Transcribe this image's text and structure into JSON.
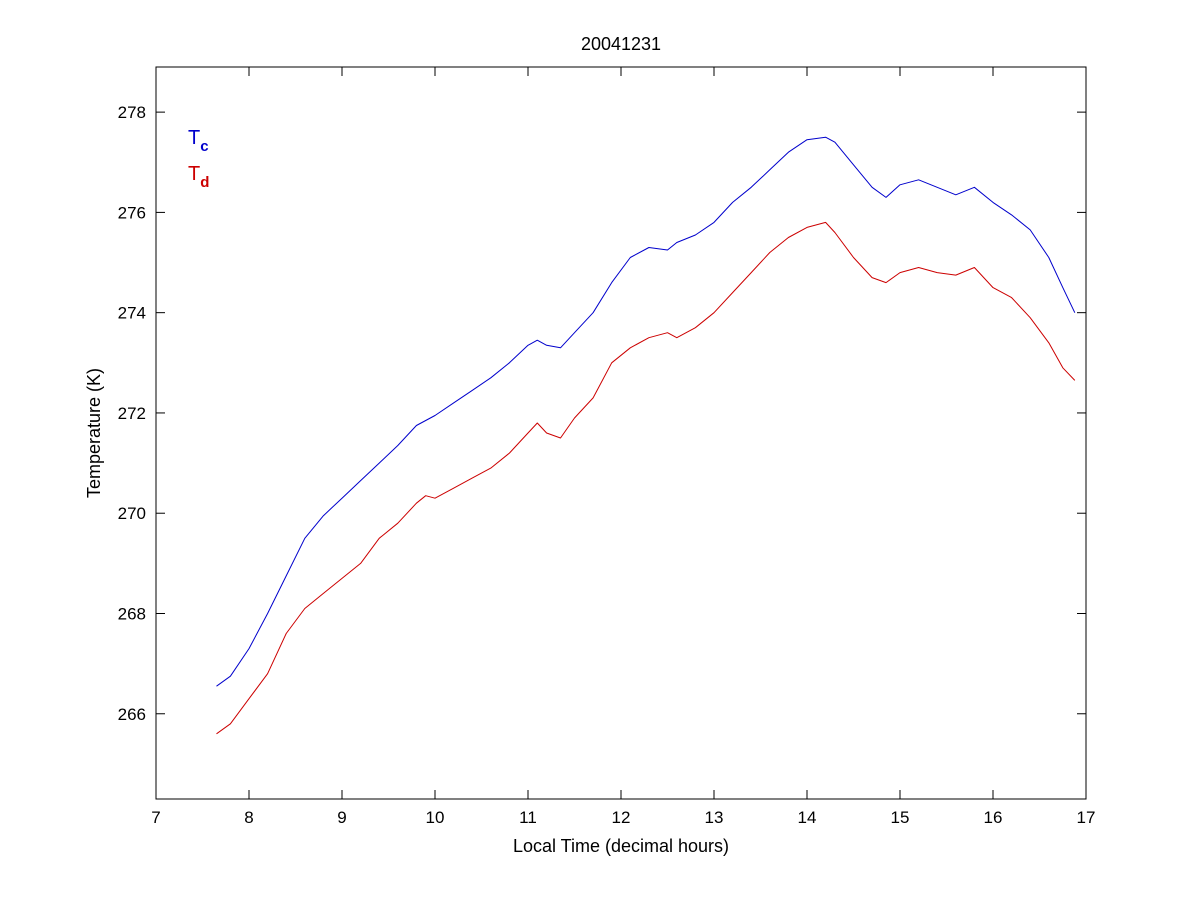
{
  "chart_data": {
    "type": "line",
    "title": "20041231",
    "xlabel": "Local Time (decimal hours)",
    "ylabel": "Temperature (K)",
    "xlim": [
      7,
      17
    ],
    "ylim": [
      264.3,
      278.9
    ],
    "xticks": [
      7,
      8,
      9,
      10,
      11,
      12,
      13,
      14,
      15,
      16,
      17
    ],
    "yticks": [
      266,
      268,
      270,
      272,
      274,
      276,
      278
    ],
    "grid": false,
    "legend_placement": "top-left",
    "series": [
      {
        "name": "T",
        "subscript": "c",
        "color": "#0000cc",
        "x": [
          7.65,
          7.8,
          8.0,
          8.2,
          8.4,
          8.6,
          8.8,
          9.0,
          9.2,
          9.4,
          9.6,
          9.8,
          9.9,
          10.0,
          10.2,
          10.4,
          10.6,
          10.8,
          11.0,
          11.1,
          11.2,
          11.35,
          11.5,
          11.7,
          11.9,
          12.1,
          12.3,
          12.5,
          12.6,
          12.8,
          13.0,
          13.2,
          13.4,
          13.6,
          13.8,
          14.0,
          14.2,
          14.3,
          14.5,
          14.7,
          14.85,
          15.0,
          15.2,
          15.4,
          15.6,
          15.8,
          16.0,
          16.2,
          16.4,
          16.6,
          16.75,
          16.88
        ],
        "values": [
          266.55,
          266.75,
          267.3,
          268.0,
          268.75,
          269.5,
          269.95,
          270.3,
          270.65,
          271.0,
          271.35,
          271.75,
          271.85,
          271.95,
          272.2,
          272.45,
          272.7,
          273.0,
          273.35,
          273.45,
          273.35,
          273.3,
          273.6,
          274.0,
          274.6,
          275.1,
          275.3,
          275.25,
          275.4,
          275.55,
          275.8,
          276.2,
          276.5,
          276.85,
          277.2,
          277.45,
          277.5,
          277.4,
          276.95,
          276.5,
          276.3,
          276.55,
          276.65,
          276.5,
          276.35,
          276.5,
          276.2,
          275.95,
          275.65,
          275.1,
          274.5,
          274.0
        ]
      },
      {
        "name": "T",
        "subscript": "d",
        "color": "#cc0000",
        "x": [
          7.65,
          7.8,
          8.0,
          8.2,
          8.4,
          8.6,
          8.8,
          9.0,
          9.2,
          9.4,
          9.6,
          9.8,
          9.9,
          10.0,
          10.2,
          10.4,
          10.6,
          10.8,
          11.0,
          11.1,
          11.2,
          11.35,
          11.5,
          11.7,
          11.9,
          12.1,
          12.3,
          12.5,
          12.6,
          12.8,
          13.0,
          13.2,
          13.4,
          13.6,
          13.8,
          14.0,
          14.2,
          14.3,
          14.5,
          14.7,
          14.85,
          15.0,
          15.2,
          15.4,
          15.6,
          15.8,
          16.0,
          16.2,
          16.4,
          16.6,
          16.75,
          16.88
        ],
        "values": [
          265.6,
          265.8,
          266.3,
          266.8,
          267.6,
          268.1,
          268.4,
          268.7,
          269.0,
          269.5,
          269.8,
          270.2,
          270.35,
          270.3,
          270.5,
          270.7,
          270.9,
          271.2,
          271.6,
          271.8,
          271.6,
          271.5,
          271.9,
          272.3,
          273.0,
          273.3,
          273.5,
          273.6,
          273.5,
          273.7,
          274.0,
          274.4,
          274.8,
          275.2,
          275.5,
          275.7,
          275.8,
          275.6,
          275.1,
          274.7,
          274.6,
          274.8,
          274.9,
          274.8,
          274.75,
          274.9,
          274.5,
          274.3,
          273.9,
          273.4,
          272.9,
          272.65
        ]
      }
    ]
  }
}
